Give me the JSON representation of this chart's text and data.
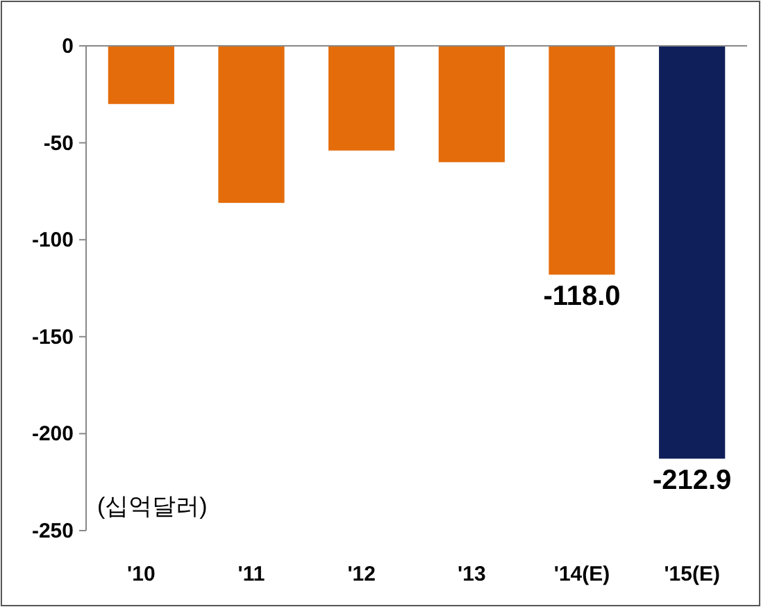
{
  "chart_data": {
    "type": "bar",
    "categories": [
      "'10",
      "'11",
      "'12",
      "'13",
      "'14(E)",
      "'15(E)"
    ],
    "values": [
      -30,
      -81,
      -54,
      -60,
      -118.0,
      -212.9
    ],
    "colors": [
      "#e46c0a",
      "#e46c0a",
      "#e46c0a",
      "#e46c0a",
      "#e46c0a",
      "#0f1f5a"
    ],
    "value_labels": [
      null,
      null,
      null,
      null,
      "-118.0",
      "-212.9"
    ],
    "ylim": [
      -250,
      0
    ],
    "yticks": [
      0,
      -50,
      -100,
      -150,
      -200,
      -250
    ],
    "annotations": [
      "(십억달러)"
    ]
  }
}
